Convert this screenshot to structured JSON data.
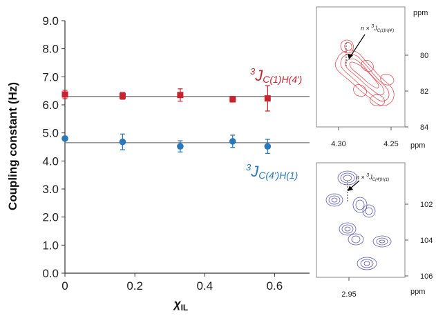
{
  "chart_data": [
    {
      "type": "scatter",
      "xlabel_main": "χ",
      "xlabel_sub": "IL",
      "ylabel": "Coupling constant (Hz)",
      "xlim": [
        0,
        0.7
      ],
      "ylim": [
        0,
        9
      ],
      "x_ticks": [
        "0",
        "0.2",
        "0.4",
        "0.6"
      ],
      "y_ticks": [
        "0.0",
        "1.0",
        "2.0",
        "3.0",
        "4.0",
        "5.0",
        "6.0",
        "7.0",
        "8.0",
        "9.0"
      ],
      "grid": false,
      "series": [
        {
          "label_base": "J",
          "label_super": "3",
          "label_sub": "C(1)H(4')",
          "color": "#c8242f",
          "marker": "square",
          "mean_line": 6.3,
          "x": [
            0,
            0.165,
            0.33,
            0.48,
            0.58
          ],
          "y": [
            6.37,
            6.32,
            6.35,
            6.2,
            6.23
          ],
          "error": [
            0.15,
            0.12,
            0.22,
            0.1,
            0.45
          ]
        },
        {
          "label_base": "J",
          "label_super": "3",
          "label_sub": "C(4')H(1)",
          "color": "#2b78b9",
          "marker": "circle",
          "mean_line": 4.65,
          "x": [
            0,
            0.165,
            0.33,
            0.48,
            0.58
          ],
          "y": [
            4.8,
            4.68,
            4.52,
            4.7,
            4.52
          ],
          "error": [
            0.07,
            0.28,
            0.2,
            0.22,
            0.25
          ]
        }
      ]
    },
    {
      "type": "contour",
      "name": "inset-top",
      "color": "#e0323a",
      "x_unit": "ppm",
      "y_unit": "ppm",
      "x_ticks": [
        "4.30",
        "4.25"
      ],
      "y_ticks": [
        "80",
        "82",
        "84"
      ],
      "annotation_prefix": "n ×",
      "annotation_super": "3",
      "annotation_base": "J",
      "annotation_sub": "C(1)H(4')"
    },
    {
      "type": "contour",
      "name": "inset-bottom",
      "color": "#3c3ca5",
      "x_unit": "ppm",
      "y_unit": "ppm",
      "x_ticks": [
        "2.95"
      ],
      "y_ticks": [
        "102",
        "104",
        "106"
      ],
      "annotation_prefix": "n ×",
      "annotation_super": "3",
      "annotation_base": "J",
      "annotation_sub": "C(4')H(1)"
    }
  ]
}
